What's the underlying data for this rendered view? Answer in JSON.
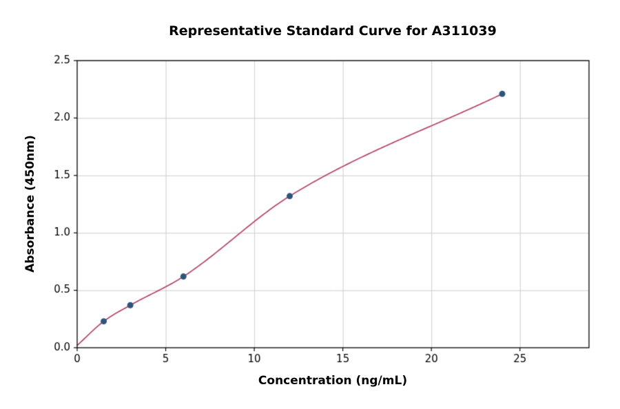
{
  "chart_data": {
    "type": "scatter",
    "title": "Representative Standard Curve for A311039",
    "xlabel": "Concentration (ng/mL)",
    "ylabel": "Absorbance (450nm)",
    "xlim": [
      0,
      28.9
    ],
    "ylim": [
      0,
      2.5
    ],
    "xticks": [
      0,
      5,
      10,
      15,
      20,
      25
    ],
    "xtick_labels": [
      "0",
      "5",
      "10",
      "15",
      "20",
      "25"
    ],
    "yticks": [
      0,
      0.5,
      1.0,
      1.5,
      2.0,
      2.5
    ],
    "ytick_labels": [
      "0.0",
      "0.5",
      "1.0",
      "1.5",
      "2.0",
      "2.5"
    ],
    "grid": true,
    "points": [
      {
        "x": 1.5,
        "y": 0.23
      },
      {
        "x": 3,
        "y": 0.37
      },
      {
        "x": 6,
        "y": 0.62
      },
      {
        "x": 12,
        "y": 1.32
      },
      {
        "x": 24,
        "y": 2.21
      }
    ],
    "fit_curve_start": {
      "x": 0,
      "y": 0.02
    },
    "colors": {
      "point": "#2d567c",
      "curve": "#b8496c",
      "grid": "#cccccc",
      "axis": "#000000",
      "text": "#000000"
    }
  }
}
